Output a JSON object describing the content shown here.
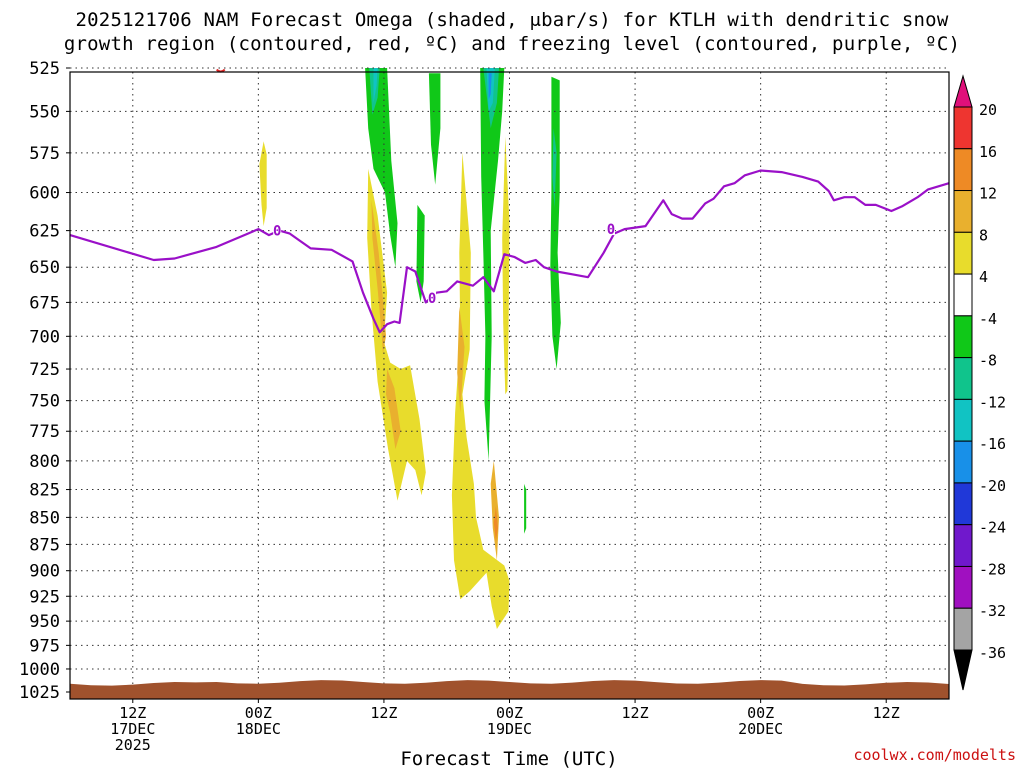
{
  "title": {
    "line1": "2025121706 NAM Forecast Omega (shaded, μbar/s) for KTLH with dendritic snow",
    "line2": "growth region (contoured, red, ºC) and freezing level (contoured, purple, ºC)"
  },
  "credit": "coolwx.com/modelts",
  "chart_data": {
    "type": "heatmap",
    "title": "2025121706 NAM Forecast Omega (shaded, μbar/s) for KTLH with dendritic snow growth region (contoured, red, ºC) and freezing level (contoured, purple, ºC)",
    "xlabel": "Forecast Time (UTC)",
    "ylabel": "",
    "x_range_hours": [
      0,
      84
    ],
    "ylim": [
      1025,
      525
    ],
    "y_ticks": [
      525,
      550,
      575,
      600,
      625,
      650,
      675,
      700,
      725,
      750,
      775,
      800,
      825,
      850,
      875,
      900,
      925,
      950,
      975,
      1000,
      1025
    ],
    "x_ticks": [
      {
        "hour": 6,
        "lines": [
          "12Z",
          "17DEC",
          "2025"
        ]
      },
      {
        "hour": 18,
        "lines": [
          "00Z",
          "18DEC"
        ]
      },
      {
        "hour": 30,
        "lines": [
          "12Z"
        ]
      },
      {
        "hour": 42,
        "lines": [
          "00Z",
          "19DEC"
        ]
      },
      {
        "hour": 54,
        "lines": [
          "12Z"
        ]
      },
      {
        "hour": 66,
        "lines": [
          "00Z",
          "20DEC"
        ]
      },
      {
        "hour": 78,
        "lines": [
          "12Z"
        ]
      }
    ],
    "colorbar": {
      "levels": [
        20,
        16,
        12,
        8,
        4,
        -4,
        -8,
        -12,
        -16,
        -20,
        -24,
        -28,
        -32,
        -36
      ],
      "colors": [
        "#e0107a",
        "#ee3530",
        "#ee8a25",
        "#e9b02e",
        "#e8dc2c",
        "#ffffff",
        "#10c818",
        "#10c48c",
        "#11c3c3",
        "#1890e8",
        "#2038d8",
        "#7018cc",
        "#a010c0",
        "#a4a4a4",
        "#000000"
      ]
    },
    "freezing_level": {
      "label": "0",
      "color": "#9a10c8",
      "points": [
        [
          0,
          628
        ],
        [
          8,
          645
        ],
        [
          10,
          644
        ],
        [
          14,
          636
        ],
        [
          17,
          627
        ],
        [
          18,
          624
        ],
        [
          19,
          628
        ],
        [
          20,
          625
        ],
        [
          21,
          627
        ],
        [
          22,
          632
        ],
        [
          23,
          637
        ],
        [
          25,
          638
        ],
        [
          27,
          646
        ],
        [
          28,
          668
        ],
        [
          29,
          687
        ],
        [
          29.6,
          697
        ],
        [
          30.3,
          691
        ],
        [
          31,
          689
        ],
        [
          31.5,
          690
        ],
        [
          32.2,
          650
        ],
        [
          33,
          653
        ],
        [
          34,
          675
        ],
        [
          35,
          668
        ],
        [
          36,
          667
        ],
        [
          37,
          660
        ],
        [
          38.5,
          663
        ],
        [
          39.5,
          657
        ],
        [
          40.5,
          667
        ],
        [
          41.5,
          641
        ],
        [
          42.5,
          643
        ],
        [
          43.5,
          647
        ],
        [
          44.5,
          645
        ],
        [
          45.3,
          650
        ],
        [
          46.5,
          653
        ],
        [
          48,
          655
        ],
        [
          49.5,
          657
        ],
        [
          51,
          640
        ],
        [
          52,
          627
        ],
        [
          53,
          624
        ],
        [
          54,
          623
        ],
        [
          55,
          622
        ],
        [
          56.7,
          605
        ],
        [
          57.5,
          614
        ],
        [
          58.5,
          617
        ],
        [
          59.5,
          617
        ],
        [
          60.7,
          607
        ],
        [
          61.5,
          604
        ],
        [
          62.5,
          596
        ],
        [
          63.5,
          594
        ],
        [
          64.5,
          589
        ],
        [
          66,
          586
        ],
        [
          68,
          587
        ],
        [
          70,
          590
        ],
        [
          71.5,
          593
        ],
        [
          72.5,
          599
        ],
        [
          73,
          605
        ],
        [
          74,
          603
        ],
        [
          75,
          603
        ],
        [
          76,
          608
        ],
        [
          77,
          608
        ],
        [
          78.5,
          612
        ],
        [
          79.5,
          609
        ],
        [
          81,
          603
        ],
        [
          82,
          598
        ],
        [
          84,
          594
        ]
      ]
    },
    "dgz_contour": {
      "color": "#dd2222",
      "hour": 14.4,
      "pressure": 527
    },
    "terrain": {
      "color": "#a0522d",
      "top_pressure": 1016
    },
    "omega_regions": [
      {
        "level": 4,
        "color": "#e8dc2c",
        "points": [
          [
            18.5,
            568
          ],
          [
            18.8,
            576
          ],
          [
            18.8,
            610
          ],
          [
            18.5,
            622
          ],
          [
            18.3,
            608
          ],
          [
            18.1,
            582
          ]
        ]
      },
      {
        "level": 4,
        "color": "#e8dc2c",
        "points": [
          [
            28.5,
            585
          ],
          [
            29.4,
            615
          ],
          [
            30.3,
            668
          ],
          [
            30,
            704
          ],
          [
            30.6,
            720
          ],
          [
            31.6,
            725
          ],
          [
            32.5,
            722
          ],
          [
            33.4,
            765
          ],
          [
            34,
            810
          ],
          [
            33.6,
            830
          ],
          [
            33,
            808
          ],
          [
            32.2,
            800
          ],
          [
            31.3,
            835
          ],
          [
            30.4,
            790
          ],
          [
            29.4,
            735
          ],
          [
            28.8,
            680
          ],
          [
            28.4,
            630
          ]
        ]
      },
      {
        "level": 8,
        "color": "#e9b02e",
        "points": [
          [
            28.8,
            605
          ],
          [
            29.5,
            640
          ],
          [
            30,
            680
          ],
          [
            30.2,
            700
          ],
          [
            29.9,
            713
          ],
          [
            29.8,
            700
          ],
          [
            29.4,
            665
          ],
          [
            28.9,
            630
          ]
        ]
      },
      {
        "level": 8,
        "color": "#e9b02e",
        "points": [
          [
            30.3,
            725
          ],
          [
            31,
            740
          ],
          [
            31.6,
            775
          ],
          [
            31.1,
            790
          ],
          [
            30.6,
            760
          ],
          [
            30.2,
            745
          ]
        ]
      },
      {
        "level": 4,
        "color": "#e8dc2c",
        "points": [
          [
            37.5,
            575
          ],
          [
            38.3,
            640
          ],
          [
            38.2,
            710
          ],
          [
            37.5,
            745
          ],
          [
            37.9,
            780
          ],
          [
            38.6,
            820
          ],
          [
            38.8,
            850
          ],
          [
            39.5,
            880
          ],
          [
            41.5,
            895
          ],
          [
            42,
            910
          ],
          [
            41.9,
            940
          ],
          [
            40.8,
            958
          ],
          [
            40.3,
            935
          ],
          [
            39.8,
            902
          ],
          [
            38.2,
            920
          ],
          [
            37.3,
            928
          ],
          [
            36.7,
            890
          ],
          [
            36.5,
            830
          ],
          [
            36.8,
            760
          ],
          [
            37.3,
            700
          ],
          [
            37.2,
            640
          ]
        ]
      },
      {
        "level": 8,
        "color": "#e9b02e",
        "points": [
          [
            37.2,
            678
          ],
          [
            37.7,
            708
          ],
          [
            37.3,
            760
          ],
          [
            37,
            728
          ]
        ]
      },
      {
        "level": 8,
        "color": "#e9b02e",
        "points": [
          [
            40.5,
            800
          ],
          [
            41,
            850
          ],
          [
            40.8,
            890
          ],
          [
            40.4,
            860
          ],
          [
            40.2,
            820
          ]
        ]
      },
      {
        "level": 12,
        "color": "#ee8a25",
        "points": [
          [
            40.7,
            840
          ],
          [
            40.9,
            860
          ],
          [
            40.7,
            872
          ],
          [
            40.5,
            855
          ]
        ]
      },
      {
        "level": 4,
        "color": "#e8dc2c",
        "points": [
          [
            41.6,
            565
          ],
          [
            42,
            620
          ],
          [
            41.9,
            700
          ],
          [
            41.8,
            742
          ],
          [
            41.6,
            745
          ],
          [
            41.4,
            690
          ],
          [
            41.3,
            630
          ]
        ]
      },
      {
        "level": -4,
        "color": "#10c818",
        "points": [
          [
            28.2,
            525
          ],
          [
            30.3,
            525
          ],
          [
            30.7,
            580
          ],
          [
            31.3,
            620
          ],
          [
            31.1,
            650
          ],
          [
            30.6,
            628
          ],
          [
            30.1,
            600
          ],
          [
            29,
            585
          ],
          [
            28.5,
            560
          ]
        ]
      },
      {
        "level": -4,
        "color": "#10c818",
        "points": [
          [
            34.3,
            528
          ],
          [
            35.4,
            528
          ],
          [
            35.4,
            560
          ],
          [
            34.9,
            595
          ],
          [
            34.5,
            570
          ]
        ]
      },
      {
        "level": -4,
        "color": "#10c818",
        "points": [
          [
            33.2,
            608
          ],
          [
            33.9,
            615
          ],
          [
            33.8,
            660
          ],
          [
            33.5,
            675
          ],
          [
            33.1,
            660
          ]
        ]
      },
      {
        "level": -4,
        "color": "#10c818",
        "points": [
          [
            39.2,
            525
          ],
          [
            41.5,
            525
          ],
          [
            41.3,
            550
          ],
          [
            40.9,
            580
          ],
          [
            40.2,
            625
          ],
          [
            40.3,
            700
          ],
          [
            40,
            800
          ],
          [
            39.6,
            750
          ],
          [
            39.7,
            700
          ],
          [
            39.5,
            640
          ],
          [
            39.3,
            590
          ]
        ]
      },
      {
        "level": -4,
        "color": "#10c818",
        "points": [
          [
            46,
            530
          ],
          [
            46.8,
            532
          ],
          [
            46.8,
            600
          ],
          [
            46.6,
            640
          ],
          [
            46.9,
            690
          ],
          [
            46.5,
            725
          ],
          [
            46.1,
            700
          ],
          [
            45.9,
            650
          ],
          [
            46,
            600
          ]
        ]
      },
      {
        "level": -4,
        "color": "#10c818",
        "points": [
          [
            43.4,
            820
          ],
          [
            43.6,
            825
          ],
          [
            43.6,
            860
          ],
          [
            43.4,
            865
          ]
        ]
      },
      {
        "level": -8,
        "color": "#10c48c",
        "points": [
          [
            28.6,
            525
          ],
          [
            29.6,
            525
          ],
          [
            29.4,
            542
          ],
          [
            28.9,
            552
          ]
        ]
      },
      {
        "level": -8,
        "color": "#10c48c",
        "points": [
          [
            46.2,
            560
          ],
          [
            46.5,
            575
          ],
          [
            46.3,
            610
          ],
          [
            46.1,
            590
          ]
        ]
      },
      {
        "level": -8,
        "color": "#10c48c",
        "points": [
          [
            39.5,
            525
          ],
          [
            41,
            525
          ],
          [
            40.8,
            545
          ],
          [
            40.2,
            560
          ]
        ]
      },
      {
        "level": -12,
        "color": "#11c3c3",
        "points": [
          [
            29,
            525
          ],
          [
            29.4,
            525
          ],
          [
            29.3,
            535
          ],
          [
            29,
            545
          ]
        ]
      },
      {
        "level": -12,
        "color": "#11c3c3",
        "points": [
          [
            39.8,
            525
          ],
          [
            40.6,
            525
          ],
          [
            40.4,
            545
          ],
          [
            40,
            550
          ]
        ]
      },
      {
        "level": -16,
        "color": "#1890e8",
        "points": [
          [
            40,
            528
          ],
          [
            40.3,
            528
          ],
          [
            40.2,
            540
          ],
          [
            40,
            543
          ]
        ]
      }
    ]
  }
}
